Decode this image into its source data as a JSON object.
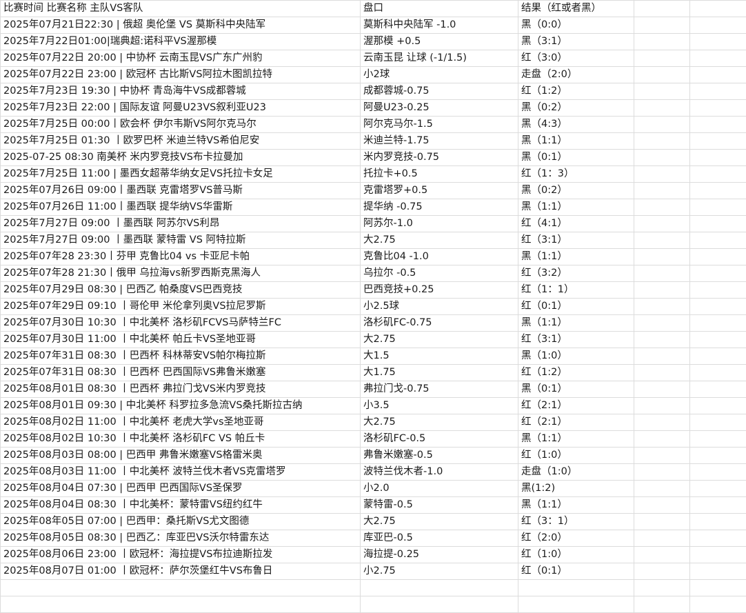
{
  "header": [
    "比赛时间 比赛名称 主队VS客队",
    "盘口",
    "结果（红或者黑）"
  ],
  "rows": [
    [
      "2025年07月21日22:30 | 俄超 奥伦堡 VS 莫斯科中央陆军",
      "莫斯科中央陆军 -1.0",
      "黑（0:0）"
    ],
    [
      "2025年7月22日01:00|瑞典超:诺科平VS渥那模",
      "渥那模 +0.5",
      "黑（3:1）"
    ],
    [
      "2025年07月22日 20:00 | 中协杯 云南玉昆VS广东广州豹",
      "云南玉昆 让球 (-1/1.5)",
      "红（3:0）"
    ],
    [
      "2025年07月22日 23:00 | 欧冠杯 古比斯VS阿拉木图凯拉特",
      "小2球",
      "走盘（2:0）"
    ],
    [
      "2025年7月23日 19:30 | 中协杯 青岛海牛VS成都蓉城",
      "成都蓉城-0.75",
      "红（1:2）"
    ],
    [
      "2025年7月23日 22:00 | 国际友谊 阿曼U23VS叙利亚U23",
      "阿曼U23-0.25",
      "黑（0:2）"
    ],
    [
      "2025年7月25日 00:00丨欧会杯 伊尔韦斯VS阿尔克马尔",
      "阿尔克马尔-1.5",
      "黑（4:3）"
    ],
    [
      "2025年7月25日 01:30 丨欧罗巴杯 米迪兰特VS希伯尼安",
      "米迪兰特-1.75",
      "黑（1:1）"
    ],
    [
      "2025-07-25 08:30 南美杯 米内罗竞技VS布卡拉曼加",
      "米内罗竞技-0.75",
      "黑（0:1）"
    ],
    [
      "2025年7月25日 11:00 |  墨西女超蒂华纳女足VS托拉卡女足",
      "托拉卡+0.5",
      "红（1：3）"
    ],
    [
      "2025年07月26日 09:00丨墨西联 克雷塔罗VS普马斯",
      "克雷塔罗+0.5",
      "黑（0:2）"
    ],
    [
      "2025年07月26日 11:00丨墨西联 提华纳VS华雷斯",
      "提华纳 -0.75",
      "黑（1:1）"
    ],
    [
      "2025年7月27日 09:00 丨墨西联 阿苏尔VS利昂",
      "阿苏尔-1.0",
      "红（4:1）"
    ],
    [
      "2025年7月27日 09:00 丨墨西联 蒙特雷 VS 阿特拉斯",
      "大2.75",
      "红（3:1）"
    ],
    [
      "2025年07年28 23:30丨芬甲 克鲁比04 vs 卡亚尼卡帕",
      "克鲁比04 -1.0",
      "黑（1:1）"
    ],
    [
      "2025年07年28 21:30丨俄甲 乌拉海vs新罗西斯克黑海人",
      "乌拉尔 -0.5",
      "红（3:2）"
    ],
    [
      "2025年07月29日 08:30 |  巴西乙 帕桑度VS巴西竞技",
      "巴西竞技+0.25",
      "红（1：1）"
    ],
    [
      "2025年07年29日 09:10 丨哥伦甲 米伦拿列奥VS拉尼罗斯",
      "小2.5球",
      "红（0:1）"
    ],
    [
      "2025年07月30日 10:30 丨中北美杯 洛杉矶FCVS马萨特兰FC",
      "洛杉矶FC-0.75",
      "黑（1:1）"
    ],
    [
      "2025年07月30日 11:00 丨中北美杯 帕丘卡VS圣地亚哥",
      "大2.75",
      "红（3:1）"
    ],
    [
      "2025年07年31日 08:30 丨巴西杯 科林蒂安VS帕尔梅拉斯",
      "大1.5",
      "黑（1:0）"
    ],
    [
      "2025年07年31日 08:30 丨巴西杯 巴西国际VS弗鲁米嫩塞",
      "大1.75",
      "红（1:2）"
    ],
    [
      "2025年08月01日 08:30 丨巴西杯 弗拉门戈VS米内罗竞技",
      "弗拉门戈-0.75",
      "黑（0:1）"
    ],
    [
      "2025年08月01日 09:30 | 中北美杯 科罗拉多急流VS桑托斯拉古纳",
      "小3.5",
      "红（2:1）"
    ],
    [
      "2025年08月02日 11:00 丨中北美杯 老虎大学vs圣地亚哥",
      "大2.75",
      "红（2:1）"
    ],
    [
      "2025年08月02日 10:30 丨中北美杯 洛杉矶FC VS 帕丘卡",
      "洛杉矶FC-0.5",
      "黑（1:1）"
    ],
    [
      "2025年08月03日 08:00 |  巴西甲 弗鲁米嫩塞VS格雷米奥",
      "弗鲁米嫩塞-0.5",
      "红（1:0）"
    ],
    [
      "2025年08月03日 11:00 丨中北美杯 波特兰伐木者VS克雷塔罗",
      "波特兰伐木者-1.0",
      "走盘（1:0）"
    ],
    [
      "2025年08月04日 07:30 | 巴西甲 巴西国际VS圣保罗",
      "小2.0",
      "黑(1:2)"
    ],
    [
      "2025年08月04日 08:30 丨中北美杯：蒙特雷VS纽约红牛",
      "蒙特雷-0.5",
      "黑（1:1）"
    ],
    [
      "2025年08年05日 07:00 |  巴西甲：桑托斯VS尤文图德",
      "大2.75",
      "红（3：1）"
    ],
    [
      "2025年08月05日 08:30 |  巴西乙：库亚巴VS沃尔特雷东达",
      "库亚巴-0.5",
      "红（2:0）"
    ],
    [
      "2025年08月06日 23:00 丨欧冠杯：海拉提VS布拉迪斯拉发",
      "海拉提-0.25",
      "红（1:0）"
    ],
    [
      "2025年08月07日 01:00 丨欧冠杯：萨尔茨堡红牛VS布鲁日",
      "小2.75",
      "红（0:1）"
    ]
  ],
  "empty_rows": 2
}
